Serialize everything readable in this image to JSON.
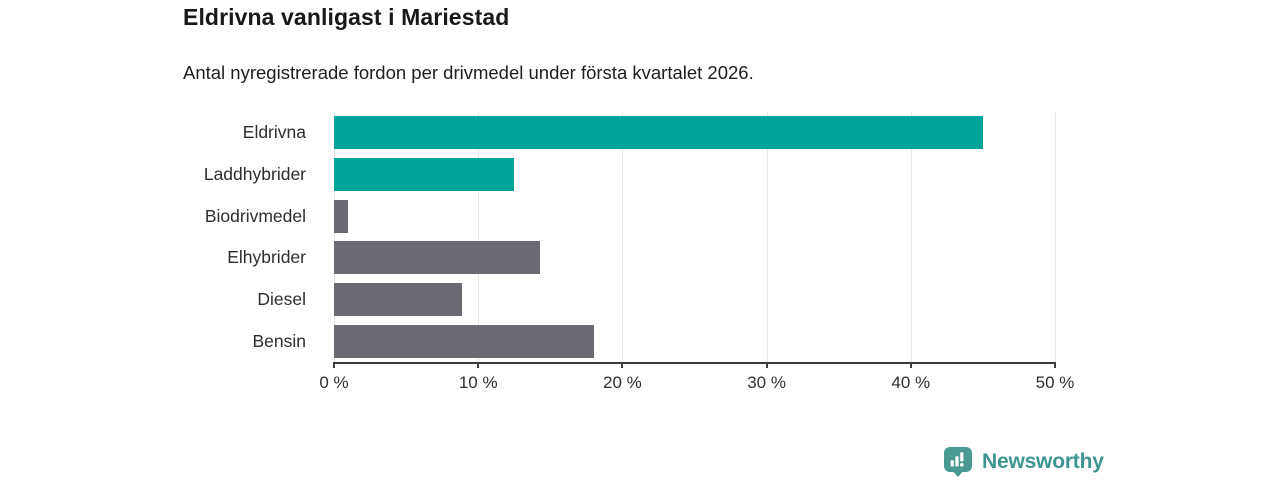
{
  "title": "Eldrivna vanligast i Mariestad",
  "subtitle": "Antal nyregistrerade fordon per drivmedel under första kvartalet 2026.",
  "chart_data": {
    "type": "bar",
    "orientation": "horizontal",
    "title": "Eldrivna vanligast i Mariestad",
    "subtitle": "Antal nyregistrerade fordon per drivmedel under första kvartalet 2026.",
    "categories": [
      "Eldrivna",
      "Laddhybrider",
      "Biodrivmedel",
      "Elhybrider",
      "Diesel",
      "Bensin"
    ],
    "values": [
      45,
      12.5,
      1,
      14.3,
      8.9,
      18
    ],
    "unit": "%",
    "xlim": [
      0,
      50
    ],
    "x_tick_values": [
      0,
      10,
      20,
      30,
      40,
      50
    ],
    "x_tick_labels": [
      "0 %",
      "10 %",
      "20 %",
      "30 %",
      "40 %",
      "50 %"
    ],
    "grid": true,
    "legend": false,
    "bar_colors": [
      "#00a49a",
      "#00a49a",
      "#6b6a72",
      "#6b6a72",
      "#6b6a72",
      "#6b6a72"
    ],
    "highlight_color": "#00a49a",
    "default_color": "#6b6a72"
  },
  "branding": {
    "logo_text": "Newsworthy",
    "logo_color": "#3e9490",
    "logo_icon": "bar-chart-speech-bubble-icon",
    "icon_fill": "#4a9a94"
  }
}
